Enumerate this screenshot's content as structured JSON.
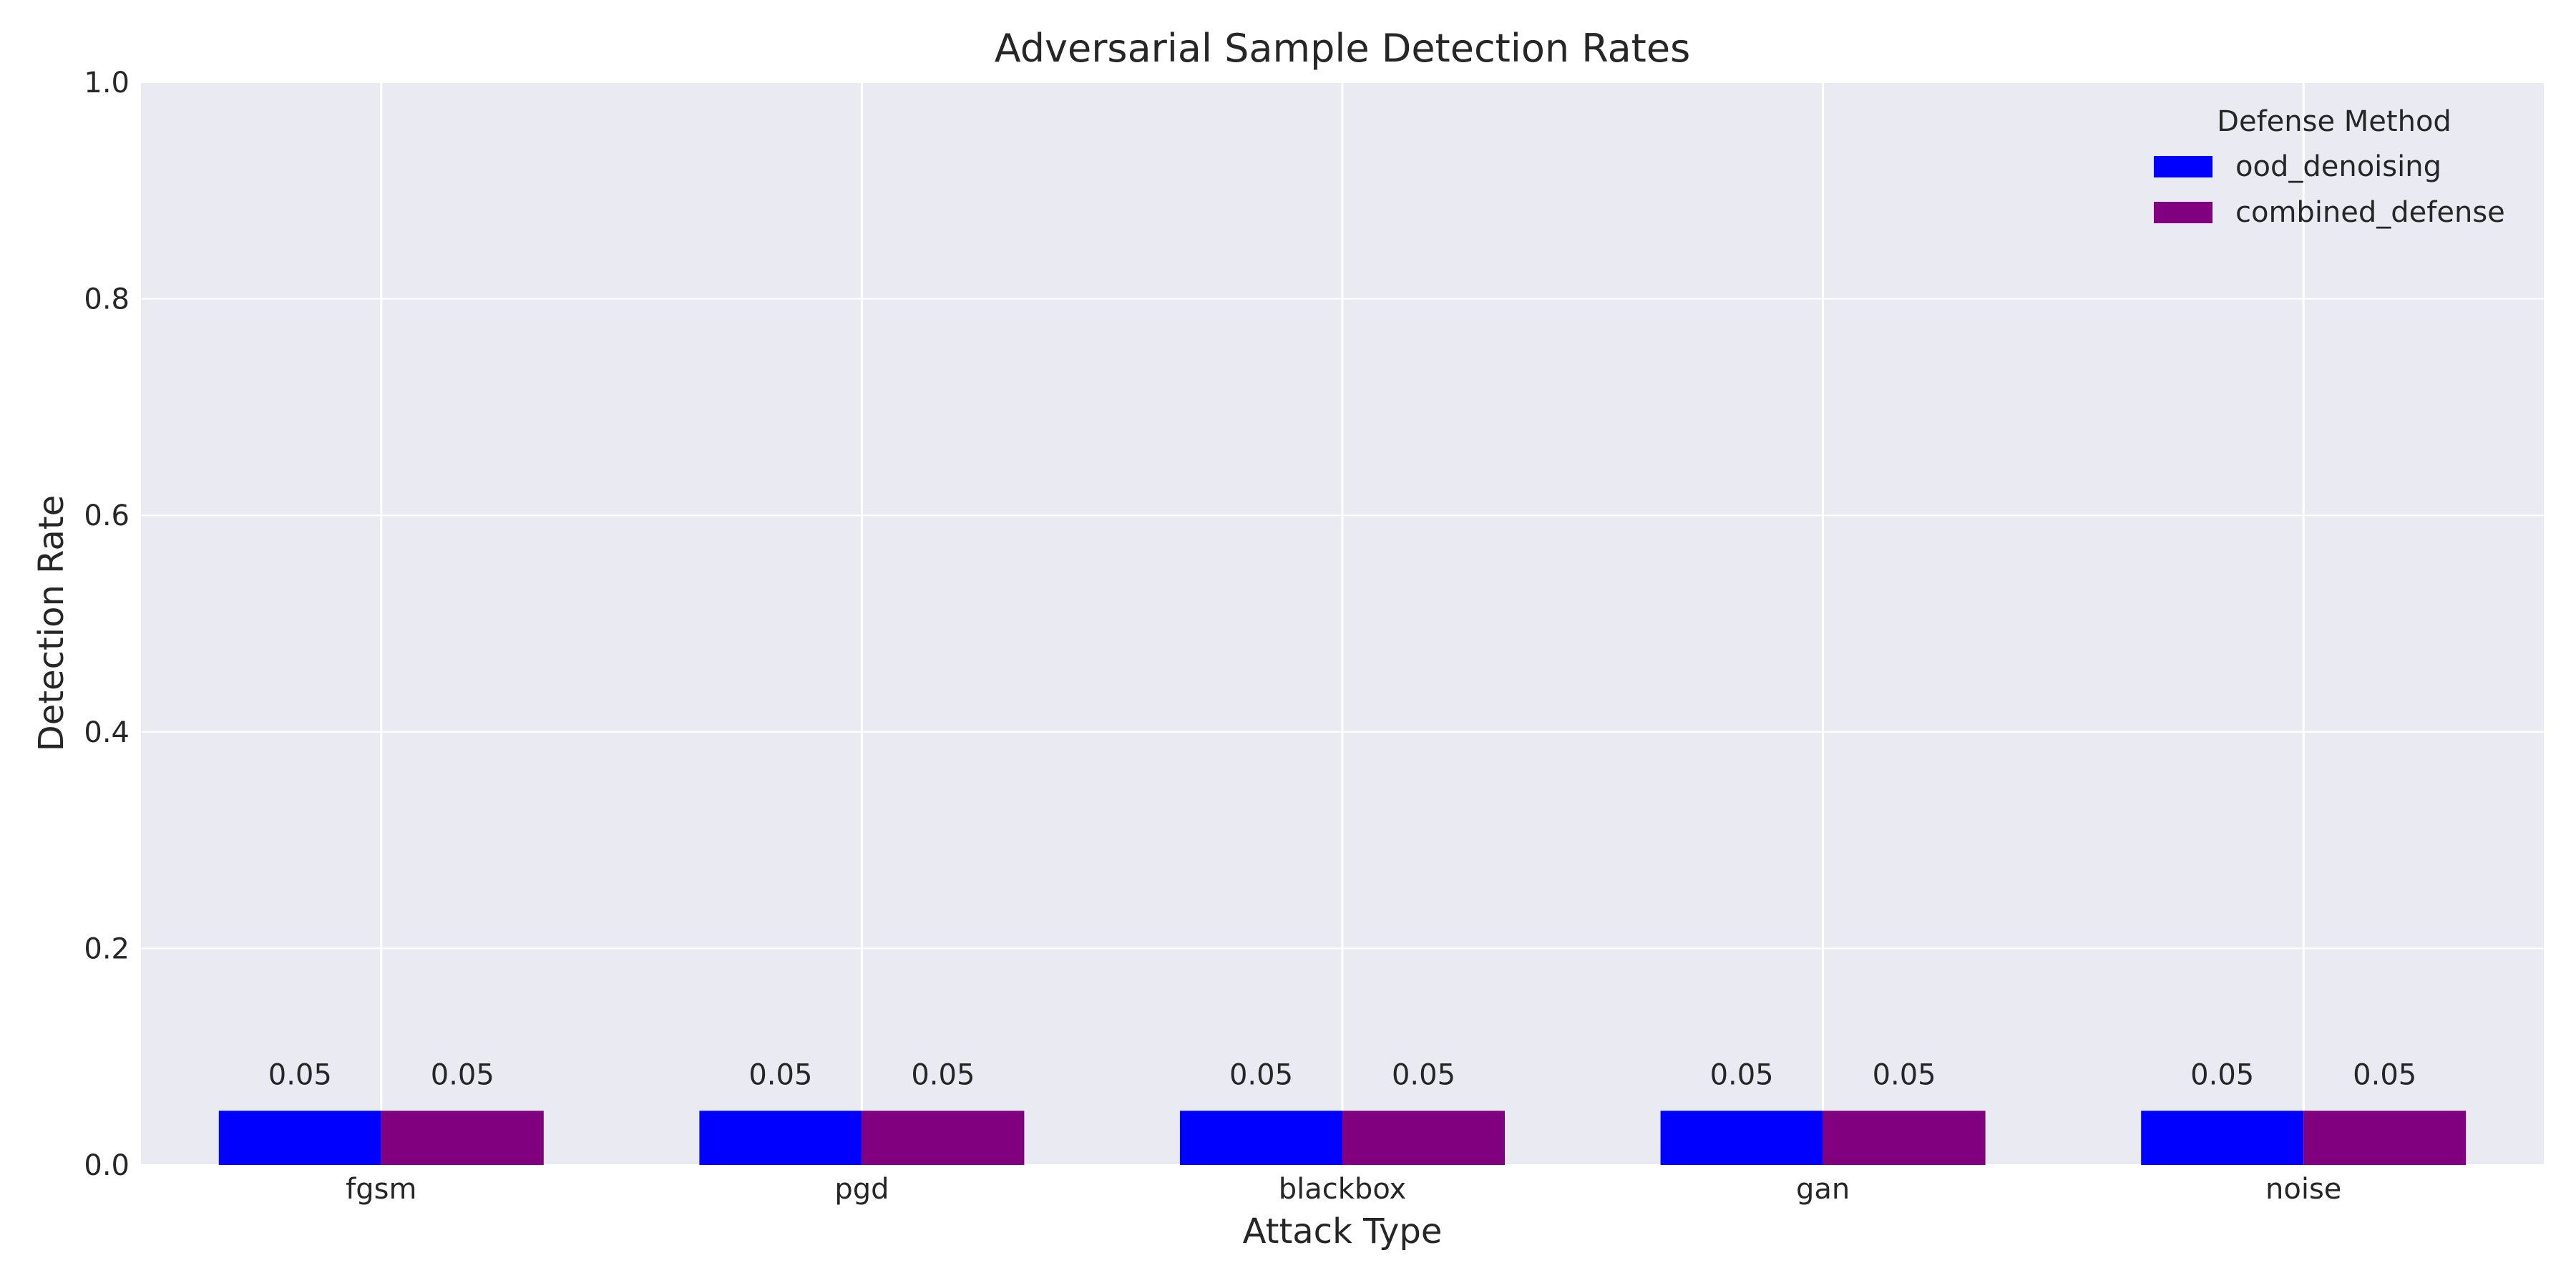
{
  "chart_data": {
    "type": "bar",
    "title": "Adversarial Sample Detection Rates",
    "xlabel": "Attack Type",
    "ylabel": "Detection Rate",
    "categories": [
      "fgsm",
      "pgd",
      "blackbox",
      "gan",
      "noise"
    ],
    "series": [
      {
        "name": "ood_denoising",
        "color": "#0000ff",
        "values": [
          0.05,
          0.05,
          0.05,
          0.05,
          0.05
        ]
      },
      {
        "name": "combined_defense",
        "color": "#800080",
        "values": [
          0.05,
          0.05,
          0.05,
          0.05,
          0.05
        ]
      }
    ],
    "data_labels": [
      "0.05",
      "0.05",
      "0.05",
      "0.05",
      "0.05",
      "0.05",
      "0.05",
      "0.05",
      "0.05",
      "0.05"
    ],
    "ylim": [
      0,
      1.0
    ],
    "yticks": [
      "0.0",
      "0.2",
      "0.4",
      "0.6",
      "0.8",
      "1.0"
    ],
    "ytick_values": [
      0,
      0.2,
      0.4,
      0.6,
      0.8,
      1.0
    ],
    "legend": {
      "title": "Defense Method",
      "position": "top-right"
    },
    "grid": true,
    "colors": {
      "background": "#eaeaf2",
      "grid": "#ffffff",
      "text": "#262626"
    }
  }
}
